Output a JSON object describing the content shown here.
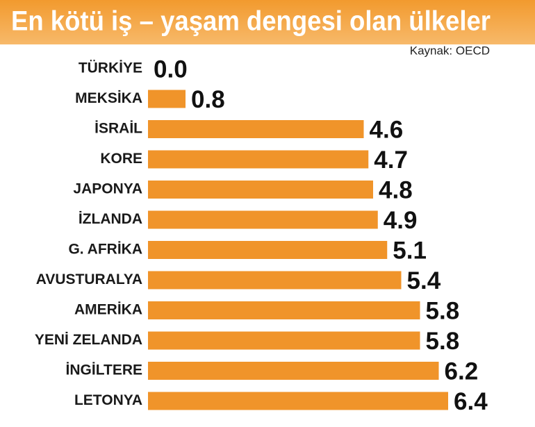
{
  "chart_data": {
    "type": "bar",
    "orientation": "horizontal",
    "title": "En kötü iş – yaşam dengesi olan ülkeler",
    "source": "Kaynak: OECD",
    "categories": [
      "TÜRKİYE",
      "MEKSİKA",
      "İSRAİL",
      "KORE",
      "JAPONYA",
      "İZLANDA",
      "G. AFRİKA",
      "AVUSTURALYA",
      "AMERİKA",
      "YENİ ZELANDA",
      "İNGİLTERE",
      "LETONYA"
    ],
    "values": [
      0.0,
      0.8,
      4.6,
      4.7,
      4.8,
      4.9,
      5.1,
      5.4,
      5.8,
      5.8,
      6.2,
      6.4
    ],
    "value_labels": [
      "0.0",
      "0.8",
      "4.6",
      "4.7",
      "4.8",
      "4.9",
      "5.1",
      "5.4",
      "5.8",
      "5.8",
      "6.2",
      "6.4"
    ],
    "color": "#f0942a"
  }
}
